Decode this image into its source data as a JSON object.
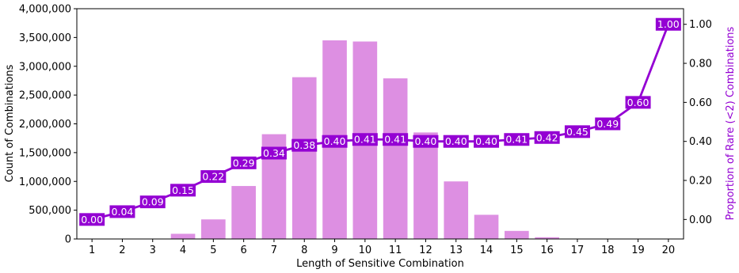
{
  "chart_data": {
    "type": "bar",
    "title": "",
    "xlabel": "Length of Sensitive Combination",
    "ylabel_left": "Count of Combinations",
    "ylabel_right": "Proportion of Rare (<2) Combinations",
    "categories": [
      "1",
      "2",
      "3",
      "4",
      "5",
      "6",
      "7",
      "8",
      "9",
      "10",
      "11",
      "12",
      "13",
      "14",
      "15",
      "16",
      "17",
      "18",
      "19",
      "20"
    ],
    "ylim_left": [
      0,
      4000000
    ],
    "yticks_left": [
      "0",
      "500,000",
      "1,000,000",
      "1,500,000",
      "2,000,000",
      "2,500,000",
      "3,000,000",
      "3,500,000",
      "4,000,000"
    ],
    "ylim_right": [
      -0.1,
      1.08
    ],
    "yticks_right": [
      "0.00",
      "0.20",
      "0.40",
      "0.60",
      "0.80",
      "1.00"
    ],
    "series": [
      {
        "kind": "bar",
        "axis": "left",
        "color": "#dd8fe2",
        "values": [
          0,
          0,
          5000,
          90000,
          340000,
          920000,
          1820000,
          2810000,
          3450000,
          3430000,
          2790000,
          1850000,
          1000000,
          420000,
          140000,
          30000,
          4000,
          0,
          0,
          0
        ]
      },
      {
        "kind": "line",
        "axis": "right",
        "color": "#9400d3",
        "values": [
          0.0,
          0.04,
          0.09,
          0.15,
          0.22,
          0.29,
          0.34,
          0.38,
          0.4,
          0.41,
          0.41,
          0.4,
          0.4,
          0.4,
          0.41,
          0.42,
          0.45,
          0.49,
          0.6,
          1.0
        ],
        "labels": [
          "0.00",
          "0.04",
          "0.09",
          "0.15",
          "0.22",
          "0.29",
          "0.34",
          "0.38",
          "0.40",
          "0.41",
          "0.41",
          "0.40",
          "0.40",
          "0.40",
          "0.41",
          "0.42",
          "0.45",
          "0.49",
          "0.60",
          "1.00"
        ]
      }
    ],
    "grid": false,
    "colors": {
      "bar": "#dd8fe2",
      "line": "#9400d3",
      "right_axis_label": "#9400d3"
    }
  }
}
